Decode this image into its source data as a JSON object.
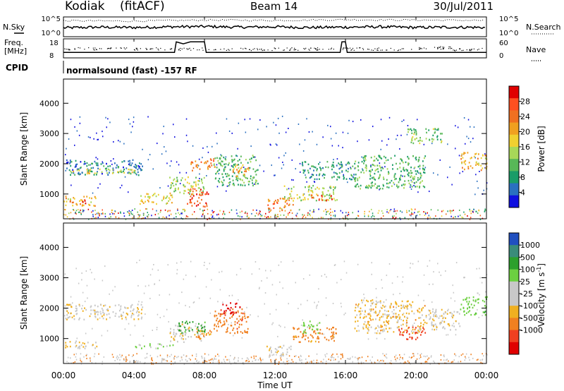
{
  "header": {
    "station": "Kodiak",
    "processing": "(fitACF)",
    "beam": "Beam 14",
    "date": "30/Jul/2011",
    "cpid_label": "CPID",
    "program": "normalsound (fast) -157 RF"
  },
  "noise_panel": {
    "left_label": "N.Sky",
    "right_label": "N.Search",
    "left_ticks": [
      "10^5",
      "10^0"
    ],
    "right_ticks": [
      "10^5",
      "10^0"
    ]
  },
  "freq_panel": {
    "left_label_line1": "Freq.",
    "left_label_line2": "[MHz]",
    "right_label": "Nave",
    "left_ticks": [
      "18",
      "8"
    ],
    "right_ticks": [
      "60",
      "0"
    ]
  },
  "power_panel": {
    "ylabel": "Slant Range [km]",
    "yticks": [
      "4000",
      "3000",
      "2000",
      "1000"
    ],
    "colorbar_label": "Power [dB]",
    "colorbar_ticks": [
      "28",
      "24",
      "20",
      "16",
      "12",
      "8",
      "4"
    ],
    "colorbar_colors": [
      "#e00000",
      "#ff5020",
      "#f07020",
      "#f0a020",
      "#f0d030",
      "#a8d858",
      "#58b858",
      "#1a9c68",
      "#2a70c0",
      "#1010e0"
    ]
  },
  "velocity_panel": {
    "ylabel": "Slant Range [km]",
    "yticks": [
      "4000",
      "3000",
      "2000",
      "1000"
    ],
    "colorbar_label": "Velocity [m s",
    "colorbar_label_sup": "-1",
    "colorbar_label_end": "]",
    "colorbar_ticks": [
      "1000",
      "500",
      "100",
      "25",
      "-25",
      "-100",
      "-500",
      "-1000"
    ],
    "colorbar_colors": [
      "#2050c0",
      "#3a8c7a",
      "#2ca02c",
      "#6cd040",
      "#c8c8c8",
      "#c8c8c8",
      "#f0b020",
      "#f08020",
      "#f04020",
      "#e00000"
    ]
  },
  "x_axis": {
    "xlabel": "Time UT",
    "ticks": [
      "00:00",
      "04:00",
      "08:00",
      "12:00",
      "16:00",
      "20:00",
      "00:00"
    ]
  },
  "chart_data": [
    {
      "type": "line",
      "title": "Kodiak (fitACF) Beam 14 30/Jul/2011",
      "series": [
        {
          "name": "N.Sky",
          "x_hours": [
            0,
            2,
            4,
            6,
            8,
            10,
            12,
            14,
            16,
            18,
            20,
            22,
            24
          ],
          "values_log10": [
            2.2,
            2.4,
            2.3,
            2.5,
            2.6,
            2.4,
            2.5,
            2.3,
            2.4,
            2.5,
            2.3,
            2.4,
            2.3
          ]
        },
        {
          "name": "N.Search",
          "x_hours": [
            0,
            4,
            8,
            12,
            16,
            20,
            24
          ],
          "values_log10": [
            4.3,
            4.2,
            4.5,
            4.4,
            4.6,
            4.5,
            4.4
          ]
        }
      ],
      "ylim_log10": [
        0,
        5
      ]
    },
    {
      "type": "line",
      "series": [
        {
          "name": "Freq. [MHz]",
          "x_hours": [
            0,
            6.3,
            6.4,
            6.8,
            7.2,
            8.0,
            8.1,
            15.7,
            15.8,
            16.0,
            16.1,
            24
          ],
          "values": [
            10.5,
            10.5,
            17,
            15.8,
            17,
            17,
            10.5,
            10.5,
            17,
            17,
            10.5,
            10.5
          ]
        },
        {
          "name": "Nave",
          "x_hours": [
            0,
            6,
            12,
            18,
            20,
            22,
            24
          ],
          "values": [
            30,
            28,
            29,
            27,
            33,
            27,
            30
          ]
        }
      ],
      "ylim": [
        8,
        18
      ]
    },
    {
      "type": "heatmap",
      "quantity": "Power [dB]",
      "xlabel": "Time UT",
      "ylabel": "Slant Range [km]",
      "xlim_hours": [
        0,
        24
      ],
      "ylim_km": [
        180,
        4800
      ],
      "clim": [
        0,
        30
      ],
      "patches": [
        {
          "t": [
            0.1,
            4.5
          ],
          "r": [
            1650,
            2150
          ],
          "v": 6,
          "note": "band"
        },
        {
          "t": [
            0.2,
            4.0
          ],
          "r": [
            1700,
            1850
          ],
          "v": 16
        },
        {
          "t": [
            0.0,
            1.8
          ],
          "r": [
            600,
            950
          ],
          "v": 18
        },
        {
          "t": [
            0.3,
            1.3
          ],
          "r": [
            680,
            840
          ],
          "v": 26
        },
        {
          "t": [
            4.2,
            6.2
          ],
          "r": [
            680,
            1050
          ],
          "v": 16
        },
        {
          "t": [
            6.0,
            8.0
          ],
          "r": [
            1000,
            1600
          ],
          "v": 14
        },
        {
          "t": [
            7.0,
            8.2
          ],
          "r": [
            600,
            1200
          ],
          "v": 26
        },
        {
          "t": [
            7.2,
            8.6
          ],
          "r": [
            1800,
            2200
          ],
          "v": 22
        },
        {
          "t": [
            8.5,
            11.0
          ],
          "r": [
            1300,
            2300
          ],
          "v": 10
        },
        {
          "t": [
            9.5,
            10.5
          ],
          "r": [
            1600,
            2000
          ],
          "v": 20
        },
        {
          "t": [
            11.5,
            13.0
          ],
          "r": [
            450,
            900
          ],
          "v": 22
        },
        {
          "t": [
            12.5,
            15.5
          ],
          "r": [
            800,
            1300
          ],
          "v": 14
        },
        {
          "t": [
            14.0,
            15.2
          ],
          "r": [
            800,
            1000
          ],
          "v": 26
        },
        {
          "t": [
            13.5,
            16.5
          ],
          "r": [
            1500,
            2100
          ],
          "v": 8
        },
        {
          "t": [
            16.5,
            20.5
          ],
          "r": [
            1200,
            2300
          ],
          "v": 10
        },
        {
          "t": [
            19.5,
            21.5
          ],
          "r": [
            2700,
            3200
          ],
          "v": 12
        },
        {
          "t": [
            22.5,
            24.0
          ],
          "r": [
            1800,
            2400
          ],
          "v": 18
        }
      ]
    },
    {
      "type": "heatmap",
      "quantity": "Velocity [m s^-1]",
      "xlabel": "Time UT",
      "ylabel": "Slant Range [km]",
      "xlim_hours": [
        0,
        24
      ],
      "ylim_km": [
        180,
        4800
      ],
      "clim": [
        -1000,
        1000
      ],
      "patches": [
        {
          "t": [
            0.1,
            4.5
          ],
          "r": [
            1650,
            2150
          ],
          "v": 0
        },
        {
          "t": [
            0.0,
            2.0
          ],
          "r": [
            700,
            950
          ],
          "v": 0
        },
        {
          "t": [
            4.0,
            6.2
          ],
          "r": [
            700,
            850
          ],
          "v": 120
        },
        {
          "t": [
            6.0,
            8.0
          ],
          "r": [
            900,
            1500
          ],
          "v": 0
        },
        {
          "t": [
            6.5,
            8.0
          ],
          "r": [
            1200,
            1600
          ],
          "v": 300
        },
        {
          "t": [
            7.5,
            8.5
          ],
          "r": [
            1000,
            1300
          ],
          "v": -150
        },
        {
          "t": [
            8.5,
            10.5
          ],
          "r": [
            1200,
            2000
          ],
          "v": -200
        },
        {
          "t": [
            9.0,
            10.0
          ],
          "r": [
            1800,
            2200
          ],
          "v": -600
        },
        {
          "t": [
            11.5,
            13.0
          ],
          "r": [
            450,
            800
          ],
          "v": 0
        },
        {
          "t": [
            13.0,
            15.5
          ],
          "r": [
            900,
            1400
          ],
          "v": -150
        },
        {
          "t": [
            13.5,
            14.5
          ],
          "r": [
            1200,
            1600
          ],
          "v": 150
        },
        {
          "t": [
            16.5,
            20.5
          ],
          "r": [
            1200,
            2300
          ],
          "v": -50
        },
        {
          "t": [
            19.0,
            20.5
          ],
          "r": [
            1000,
            1400
          ],
          "v": -400
        },
        {
          "t": [
            20.5,
            22.5
          ],
          "r": [
            1300,
            2000
          ],
          "v": 0
        },
        {
          "t": [
            22.5,
            24.0
          ],
          "r": [
            1800,
            2400
          ],
          "v": 200
        }
      ]
    }
  ]
}
